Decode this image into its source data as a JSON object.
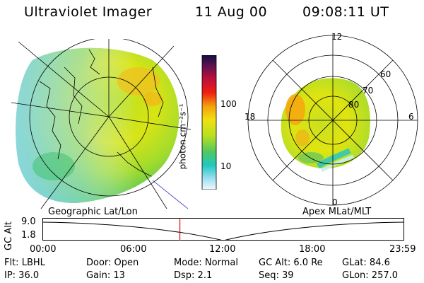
{
  "header": {
    "instrument": "Ultraviolet Imager",
    "date": "11 Aug 00",
    "time": "09:08:11 UT"
  },
  "colorbar": {
    "tick_100": "100",
    "tick_10": "10",
    "unit_label": "photon cm⁻²s⁻¹"
  },
  "polar": {
    "label_top": "12",
    "label_bottom": "0",
    "label_left": "18",
    "label_right": "6",
    "lat_60": "60",
    "lat_70": "70",
    "lat_80": "80",
    "coord_label": "Apex MLat/MLT"
  },
  "geo": {
    "coord_label": "Geographic Lat/Lon"
  },
  "altitude_plot": {
    "ylabel": "GC Alt",
    "ytick_top": "9.0",
    "ytick_bottom": "1.8",
    "xticks": [
      "00:00",
      "06:00",
      "12:00",
      "18:00",
      "23:59"
    ],
    "current_time_fraction": 0.38
  },
  "status": {
    "filter": "Flt: LBHL",
    "door": "Door: Open",
    "mode": "Mode: Normal",
    "gc_alt": "GC Alt: 6.0 Re",
    "glat": "GLat:  84.6",
    "ip": "IP: 36.0",
    "gain": "Gain: 13",
    "dsp": "Dsp:     2.1",
    "seq": "Seq: 39",
    "glon": "GLon: 257.0"
  },
  "colors": {
    "marker": "#e00000"
  }
}
